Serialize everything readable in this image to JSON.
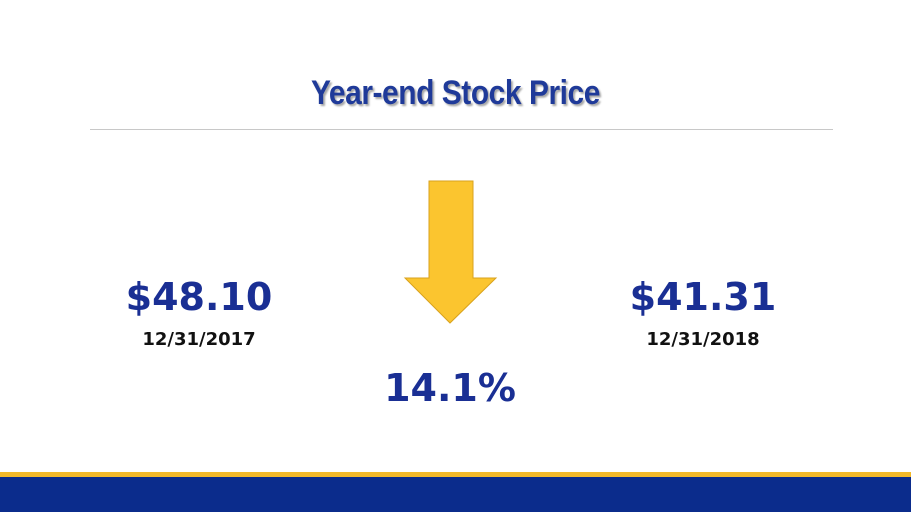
{
  "slide": {
    "title": "Year-end Stock Price",
    "left": {
      "price": "$48.10",
      "date": "12/31/2017"
    },
    "right": {
      "price": "$41.31",
      "date": "12/31/2018"
    },
    "change": "14.1%"
  }
}
